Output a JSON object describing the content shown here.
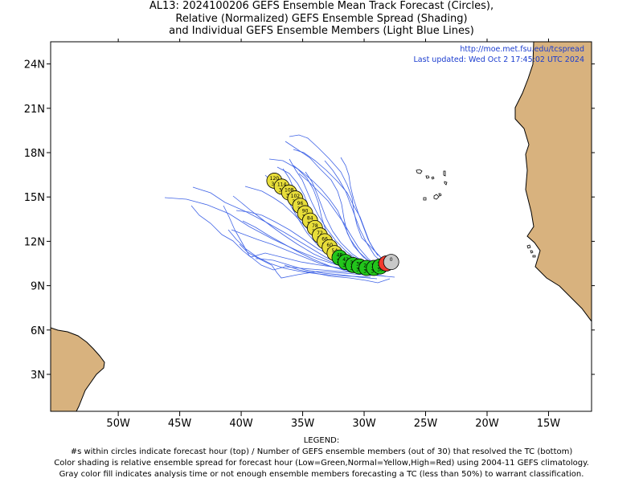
{
  "title": {
    "line1": "AL13: 2024100206 GEFS Ensemble Mean Track Forecast (Circles),",
    "line2": "Relative (Normalized) GEFS Ensemble Spread (Shading)",
    "line3": "and Individual GEFS Ensemble Members (Light Blue Lines)"
  },
  "credits": {
    "url": "http://moe.met.fsu.edu/tcspread",
    "updated": "Last updated: Wed Oct 2 17:45:02 UTC 2024"
  },
  "axes": {
    "lon_ticks": [
      "50W",
      "45W",
      "40W",
      "35W",
      "30W",
      "25W",
      "20W",
      "15W"
    ],
    "lat_ticks": [
      "24N",
      "21N",
      "18N",
      "15N",
      "12N",
      "9N",
      "6N",
      "3N"
    ],
    "lon_range": [
      -55.5,
      -11.5
    ],
    "lat_range": [
      0.5,
      25.5
    ]
  },
  "colors": {
    "land": "#d8b27e",
    "member_track": "#3f63e6",
    "spread_low": "#22c51b",
    "spread_normal": "#e8de3a",
    "spread_high": "#f13a2f",
    "analysis_gray": "#c8c8c8"
  },
  "mean_track": [
    {
      "lon": -27.8,
      "lat": 10.6,
      "hour": "0",
      "members": "",
      "shade": "gray"
    },
    {
      "lon": -28.2,
      "lat": 10.5,
      "hour": "6",
      "members": "",
      "shade": "high"
    },
    {
      "lon": -28.7,
      "lat": 10.3,
      "hour": "12",
      "members": "30",
      "shade": "low"
    },
    {
      "lon": -29.2,
      "lat": 10.2,
      "hour": "18",
      "members": "30",
      "shade": "low"
    },
    {
      "lon": -29.8,
      "lat": 10.2,
      "hour": "24",
      "members": "30",
      "shade": "low"
    },
    {
      "lon": -30.4,
      "lat": 10.3,
      "hour": "30",
      "members": "30",
      "shade": "low"
    },
    {
      "lon": -30.9,
      "lat": 10.4,
      "hour": "36",
      "members": "30",
      "shade": "low"
    },
    {
      "lon": -31.5,
      "lat": 10.6,
      "hour": "42",
      "members": "30",
      "shade": "low"
    },
    {
      "lon": -32.0,
      "lat": 10.9,
      "hour": "48",
      "members": "30",
      "shade": "low"
    },
    {
      "lon": -32.4,
      "lat": 11.2,
      "hour": "54",
      "members": "30",
      "shade": "normal"
    },
    {
      "lon": -32.8,
      "lat": 11.6,
      "hour": "60",
      "members": "30",
      "shade": "normal"
    },
    {
      "lon": -33.2,
      "lat": 12.0,
      "hour": "66",
      "members": "30",
      "shade": "normal"
    },
    {
      "lon": -33.6,
      "lat": 12.4,
      "hour": "72",
      "members": "30",
      "shade": "normal"
    },
    {
      "lon": -34.0,
      "lat": 12.9,
      "hour": "78",
      "members": "30",
      "shade": "normal"
    },
    {
      "lon": -34.4,
      "lat": 13.4,
      "hour": "84",
      "members": "30",
      "shade": "normal"
    },
    {
      "lon": -34.8,
      "lat": 13.9,
      "hour": "90",
      "members": "30",
      "shade": "normal"
    },
    {
      "lon": -35.2,
      "lat": 14.4,
      "hour": "96",
      "members": "30",
      "shade": "normal"
    },
    {
      "lon": -35.6,
      "lat": 14.9,
      "hour": "102",
      "members": "30",
      "shade": "normal"
    },
    {
      "lon": -36.1,
      "lat": 15.3,
      "hour": "108",
      "members": "30",
      "shade": "normal"
    },
    {
      "lon": -36.7,
      "lat": 15.7,
      "hour": "114",
      "members": "30",
      "shade": "normal"
    },
    {
      "lon": -37.3,
      "lat": 16.1,
      "hour": "120",
      "members": "30",
      "shade": "normal"
    }
  ],
  "legend": {
    "heading": "LEGEND:",
    "line1": "#s within circles indicate forecast hour (top) / Number of GEFS ensemble members (out of 30) that resolved the TC (bottom)",
    "line2": "Color shading is relative ensemble spread for forecast hour (Low=Green,Normal=Yellow,High=Red) using 2004-11 GEFS climatology.",
    "line3": "Gray color fill indicates analysis time or not enough ensemble members forecasting a TC (less than 50%) to warrant classification."
  }
}
